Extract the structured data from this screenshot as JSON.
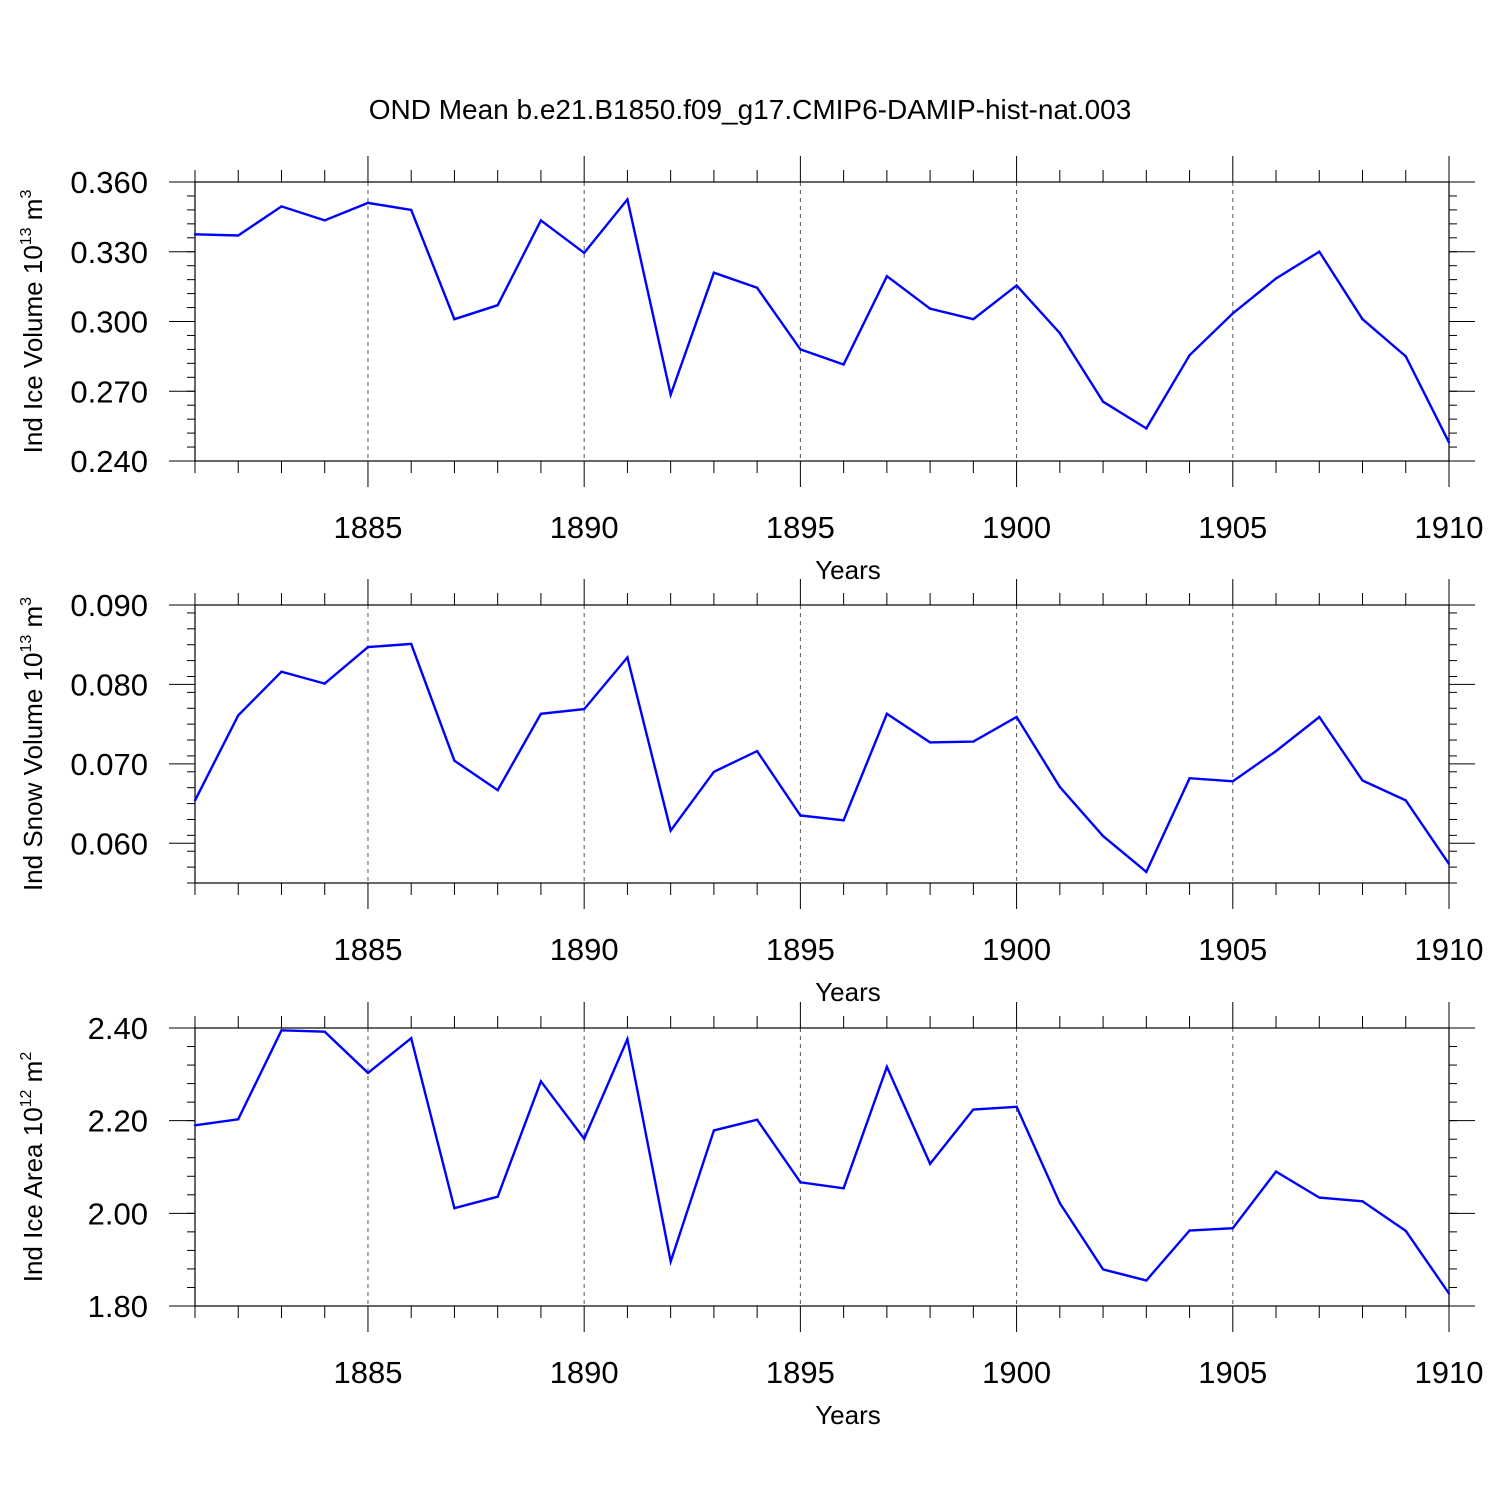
{
  "figure": {
    "title": "OND Mean b.e21.B1850.f09_g17.CMIP6-DAMIP-hist-nat.003"
  },
  "colors": {
    "line": "#0000ff",
    "axes": "#000000",
    "grid": "#555555"
  },
  "chart_data": [
    {
      "type": "line",
      "title": "",
      "xlabel": "Years",
      "ylabel": {
        "pre": "Ind Ice Volume 10",
        "exp": "13",
        "mid": " m",
        "unit_exp": "3"
      },
      "xlim": [
        1881,
        1910
      ],
      "ylim": [
        0.24,
        0.36
      ],
      "x_ticks": [
        1885,
        1890,
        1895,
        1900,
        1905,
        1910
      ],
      "x_tick_labels": [
        "1885",
        "1890",
        "1895",
        "1900",
        "1905",
        "1910"
      ],
      "y_ticks": [
        0.24,
        0.27,
        0.3,
        0.33,
        0.36
      ],
      "y_tick_labels": [
        "0.240",
        "0.270",
        "0.300",
        "0.330",
        "0.360"
      ],
      "grid": "vertical dashed at major x ticks",
      "x": [
        1881,
        1882,
        1883,
        1884,
        1885,
        1886,
        1887,
        1888,
        1889,
        1890,
        1891,
        1892,
        1893,
        1894,
        1895,
        1896,
        1897,
        1898,
        1899,
        1900,
        1901,
        1902,
        1903,
        1904,
        1905,
        1906,
        1907,
        1908,
        1909,
        1910
      ],
      "series": [
        {
          "values": [
            0.3375,
            0.337,
            0.3495,
            0.3435,
            0.351,
            0.348,
            0.301,
            0.307,
            0.3435,
            0.3295,
            0.3525,
            0.2685,
            0.321,
            0.3145,
            0.288,
            0.2815,
            0.3195,
            0.3055,
            0.301,
            0.3155,
            0.295,
            0.2655,
            0.254,
            0.2855,
            0.3035,
            0.3185,
            0.33,
            0.301,
            0.285,
            0.248
          ]
        }
      ]
    },
    {
      "type": "line",
      "title": "",
      "xlabel": "Years",
      "ylabel": {
        "pre": "Ind Snow Volume 10",
        "exp": "13",
        "mid": " m",
        "unit_exp": "3"
      },
      "xlim": [
        1881,
        1910
      ],
      "ylim": [
        0.055,
        0.09
      ],
      "x_ticks": [
        1885,
        1890,
        1895,
        1900,
        1905,
        1910
      ],
      "x_tick_labels": [
        "1885",
        "1890",
        "1895",
        "1900",
        "1905",
        "1910"
      ],
      "y_ticks": [
        0.06,
        0.07,
        0.08,
        0.09
      ],
      "y_tick_labels": [
        "0.060",
        "0.070",
        "0.080",
        "0.090"
      ],
      "grid": "vertical dashed at major x ticks",
      "x": [
        1881,
        1882,
        1883,
        1884,
        1885,
        1886,
        1887,
        1888,
        1889,
        1890,
        1891,
        1892,
        1893,
        1894,
        1895,
        1896,
        1897,
        1898,
        1899,
        1900,
        1901,
        1902,
        1903,
        1904,
        1905,
        1906,
        1907,
        1908,
        1909,
        1910
      ],
      "series": [
        {
          "values": [
            0.0654,
            0.0761,
            0.0816,
            0.0801,
            0.0847,
            0.0851,
            0.0704,
            0.0667,
            0.0763,
            0.0769,
            0.0834,
            0.0616,
            0.069,
            0.0716,
            0.0635,
            0.0629,
            0.0763,
            0.0727,
            0.0728,
            0.0759,
            0.0671,
            0.0609,
            0.0564,
            0.0682,
            0.0678,
            0.0716,
            0.0759,
            0.0679,
            0.0654,
            0.0574
          ]
        }
      ]
    },
    {
      "type": "line",
      "title": "",
      "xlabel": "Years",
      "ylabel": {
        "pre": "Ind Ice Area 10",
        "exp": "12",
        "mid": " m",
        "unit_exp": "2"
      },
      "xlim": [
        1881,
        1910
      ],
      "ylim": [
        1.8,
        2.4
      ],
      "x_ticks": [
        1885,
        1890,
        1895,
        1900,
        1905,
        1910
      ],
      "x_tick_labels": [
        "1885",
        "1890",
        "1895",
        "1900",
        "1905",
        "1910"
      ],
      "y_ticks": [
        1.8,
        2.0,
        2.2,
        2.4
      ],
      "y_tick_labels": [
        "1.80",
        "2.00",
        "2.20",
        "2.40"
      ],
      "grid": "vertical dashed at major x ticks",
      "x": [
        1881,
        1882,
        1883,
        1884,
        1885,
        1886,
        1887,
        1888,
        1889,
        1890,
        1891,
        1892,
        1893,
        1894,
        1895,
        1896,
        1897,
        1898,
        1899,
        1900,
        1901,
        1902,
        1903,
        1904,
        1905,
        1906,
        1907,
        1908,
        1909,
        1910
      ],
      "series": [
        {
          "values": [
            2.19,
            2.203,
            2.395,
            2.392,
            2.303,
            2.378,
            2.011,
            2.036,
            2.285,
            2.161,
            2.376,
            1.896,
            2.179,
            2.202,
            2.067,
            2.054,
            2.316,
            2.107,
            2.224,
            2.23,
            2.022,
            1.879,
            1.855,
            1.963,
            1.968,
            2.09,
            2.034,
            2.026,
            1.962,
            1.827
          ]
        }
      ]
    }
  ]
}
